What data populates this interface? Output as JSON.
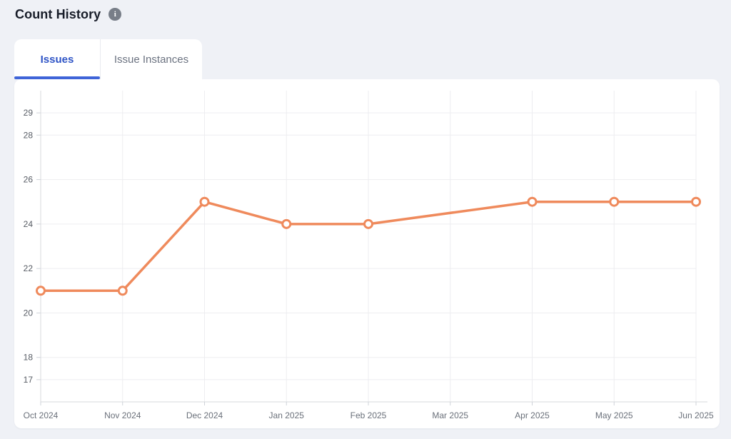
{
  "header": {
    "title": "Count History",
    "info_glyph": "i"
  },
  "tabs": [
    {
      "label": "Issues",
      "active": true
    },
    {
      "label": "Issue Instances",
      "active": false
    }
  ],
  "chart_data": {
    "type": "line",
    "title": "Count History",
    "xlabel": "",
    "ylabel": "",
    "categories": [
      "Oct 2024",
      "Nov 2024",
      "Dec 2024",
      "Jan 2025",
      "Feb 2025",
      "Mar 2025",
      "Apr 2025",
      "May 2025",
      "Jun 2025"
    ],
    "series": [
      {
        "name": "Issues",
        "values": [
          21,
          21,
          25,
          24,
          24,
          null,
          25,
          25,
          25
        ]
      }
    ],
    "y_ticks": [
      17,
      18,
      20,
      22,
      24,
      26,
      28,
      29
    ],
    "ylim": [
      16,
      30
    ],
    "grid": true,
    "legend_position": "none"
  },
  "colors": {
    "page_bg": "#eff1f6",
    "card_bg": "#ffffff",
    "accent": "#2e54c6",
    "accent_underline": "#3f64d8",
    "inactive_tab": "#6b7280",
    "info_bg": "#787e88",
    "line": "#ef8a5c",
    "marker_fill": "#ffffff",
    "grid": "#ededf0",
    "axis": "#d7dade",
    "tick": "#cfd3d9",
    "y_label": "#575c64",
    "x_label": "#6a707a"
  }
}
